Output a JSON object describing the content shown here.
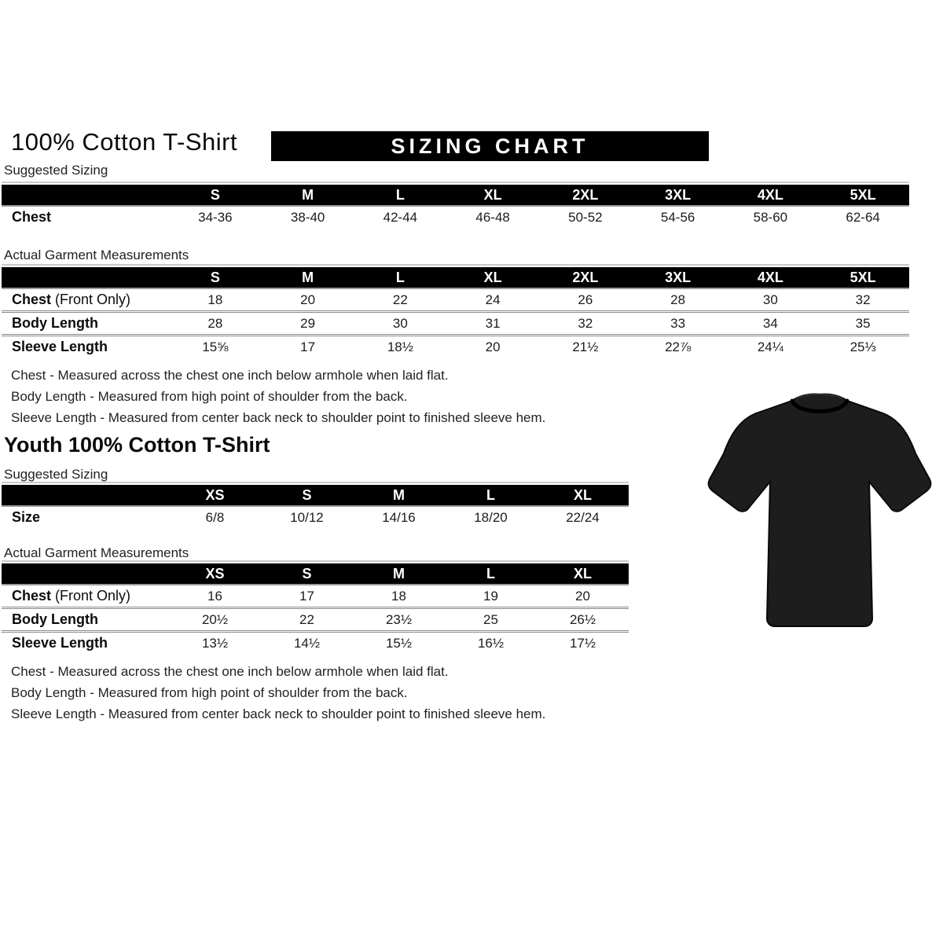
{
  "colors": {
    "bar_bg": "#000000",
    "bar_text": "#ffffff",
    "tshirt_fill": "#1d1d1d"
  },
  "adult": {
    "title": "100% Cotton T-Shirt",
    "banner": "SIZING CHART",
    "suggested": {
      "label": "Suggested Sizing",
      "columns": [
        "S",
        "M",
        "L",
        "XL",
        "2XL",
        "3XL",
        "4XL",
        "5XL"
      ],
      "rows": [
        {
          "label": "Chest",
          "values": [
            "34-36",
            "38-40",
            "42-44",
            "46-48",
            "50-52",
            "54-56",
            "58-60",
            "62-64"
          ]
        }
      ]
    },
    "garment": {
      "label": "Actual Garment Measurements",
      "columns": [
        "S",
        "M",
        "L",
        "XL",
        "2XL",
        "3XL",
        "4XL",
        "5XL"
      ],
      "rows": [
        {
          "label": "Chest",
          "label_suffix": "(Front Only)",
          "values": [
            "18",
            "20",
            "22",
            "24",
            "26",
            "28",
            "30",
            "32"
          ]
        },
        {
          "label": "Body Length",
          "values": [
            "28",
            "29",
            "30",
            "31",
            "32",
            "33",
            "34",
            "35"
          ]
        },
        {
          "label": "Sleeve Length",
          "values": [
            "15⅝",
            "17",
            "18½",
            "20",
            "21½",
            "22⅞",
            "24¼",
            "25⅓"
          ]
        }
      ]
    },
    "notes": [
      "Chest - Measured across the chest one inch below armhole when laid flat.",
      "Body Length - Measured from high point of shoulder from the back.",
      "Sleeve Length - Measured from center back neck to shoulder point to finished sleeve hem."
    ]
  },
  "youth": {
    "title": "Youth 100% Cotton T-Shirt",
    "suggested": {
      "label": "Suggested Sizing",
      "columns": [
        "XS",
        "S",
        "M",
        "L",
        "XL"
      ],
      "rows": [
        {
          "label": "Size",
          "values": [
            "6/8",
            "10/12",
            "14/16",
            "18/20",
            "22/24"
          ]
        }
      ]
    },
    "garment": {
      "label": "Actual Garment Measurements",
      "columns": [
        "XS",
        "S",
        "M",
        "L",
        "XL"
      ],
      "rows": [
        {
          "label": "Chest",
          "label_suffix": "(Front Only)",
          "values": [
            "16",
            "17",
            "18",
            "19",
            "20"
          ]
        },
        {
          "label": "Body Length",
          "values": [
            "20½",
            "22",
            "23½",
            "25",
            "26½"
          ]
        },
        {
          "label": "Sleeve Length",
          "values": [
            "13½",
            "14½",
            "15½",
            "16½",
            "17½"
          ]
        }
      ]
    },
    "notes": [
      "Chest - Measured across the chest one inch below armhole when laid flat.",
      "Body Length - Measured from high point of shoulder from the back.",
      "Sleeve Length - Measured from center back neck to shoulder point to finished sleeve hem."
    ]
  },
  "tshirt_icon": "black-tshirt"
}
